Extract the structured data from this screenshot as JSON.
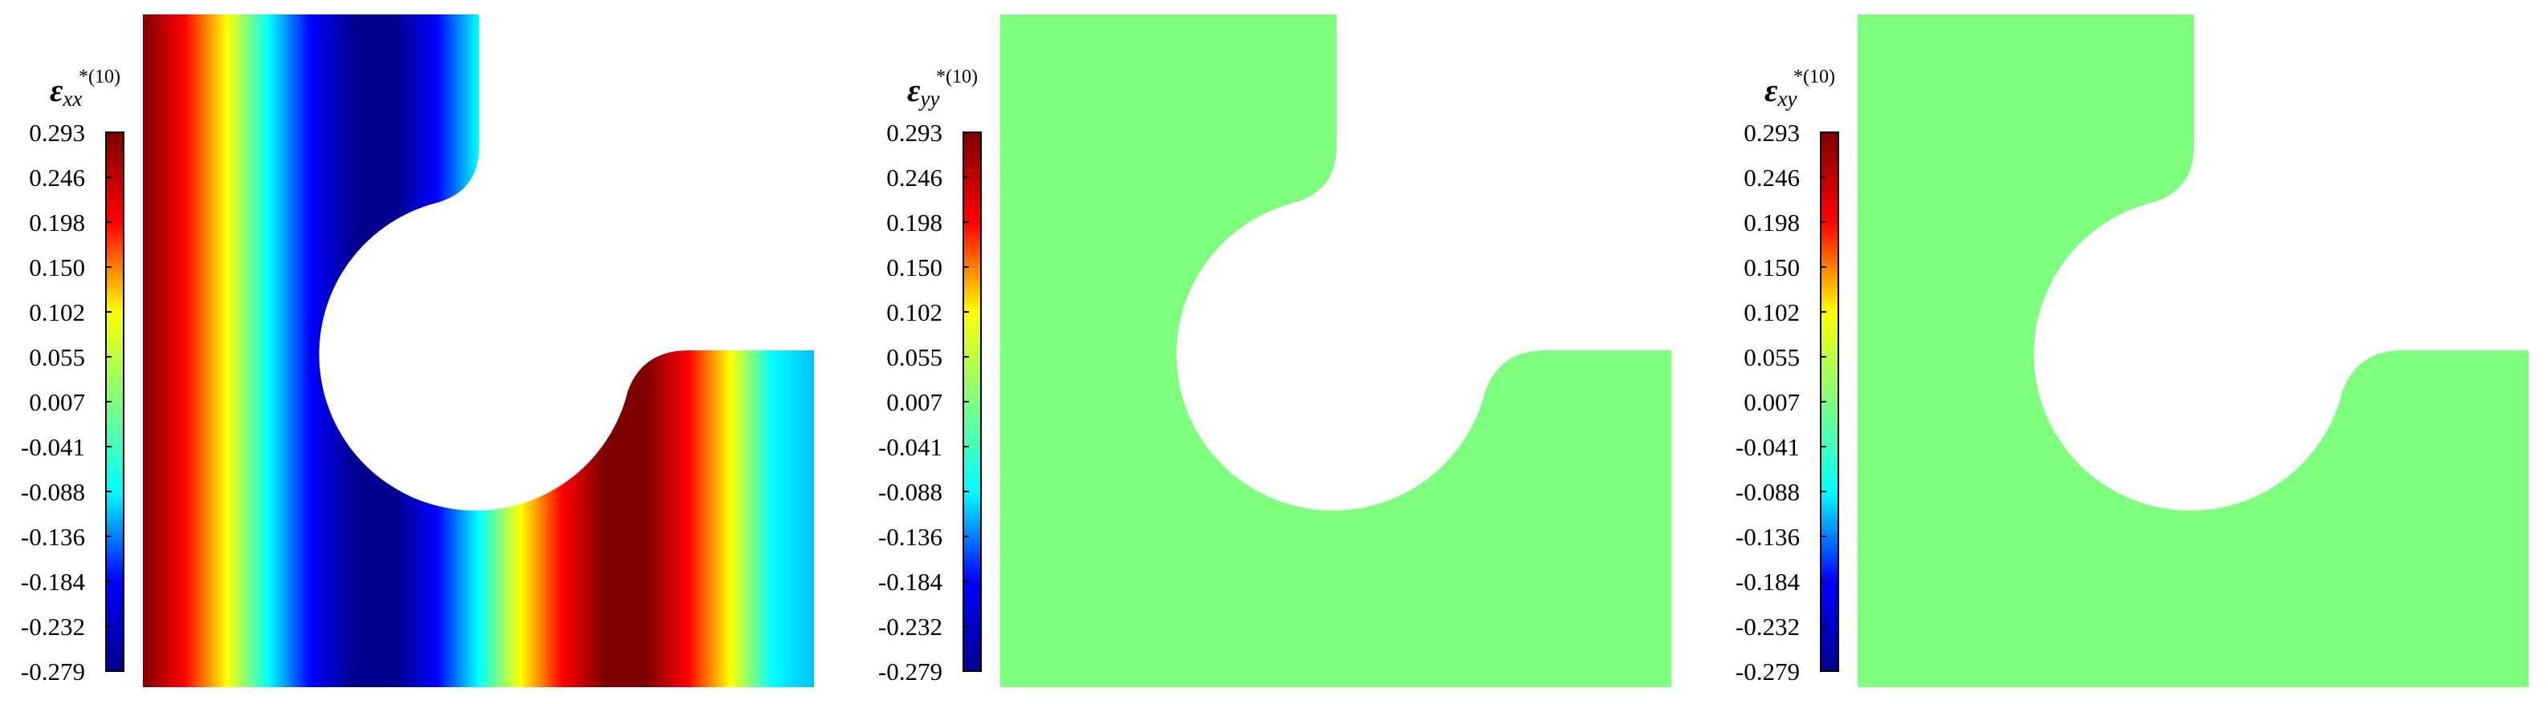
{
  "colormap": {
    "name": "jet",
    "stops": [
      "#00008f",
      "#0000ff",
      "#00ffff",
      "#7fff7f",
      "#ffff00",
      "#ff0000",
      "#7f0000"
    ]
  },
  "colorbar": {
    "ticks": [
      "0.293",
      "0.246",
      "0.198",
      "0.150",
      "0.102",
      "0.055",
      "0.007",
      "-0.041",
      "-0.088",
      "-0.136",
      "-0.184",
      "-0.232",
      "-0.279"
    ],
    "max": 0.293,
    "min": -0.279
  },
  "panels": [
    {
      "id": "panel-exx",
      "symbol": "ε",
      "subscript": "xx",
      "superscript": "*(10)",
      "field": "gradient-x",
      "field_stops": [
        "#7f0000",
        "#ff0000",
        "#ffff00",
        "#00ffff",
        "#0000ff",
        "#00008f",
        "#00008f",
        "#0000ff",
        "#00ffff",
        "#ffff00",
        "#ff0000",
        "#7f0000",
        "#7f0000",
        "#ff0000",
        "#ffff00",
        "#00ffff",
        "#00bfff"
      ]
    },
    {
      "id": "panel-eyy",
      "symbol": "ε",
      "subscript": "yy",
      "superscript": "*(10)",
      "field": "uniform",
      "fill": "#7dff7d"
    },
    {
      "id": "panel-exy",
      "symbol": "ε",
      "subscript": "xy",
      "superscript": "*(10)",
      "field": "uniform",
      "fill": "#7dff7d"
    }
  ]
}
